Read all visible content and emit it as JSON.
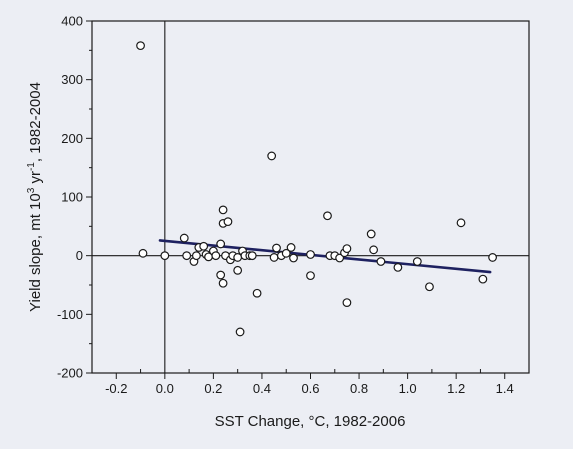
{
  "chart_data": {
    "type": "scatter",
    "xlabel": "SST Change, °C, 1982-2006",
    "ylabel_parts": {
      "pre": "Yield slope, mt 10",
      "sup1": "3",
      "mid": " yr",
      "sup2": "-1",
      "post": ", 1982-2004"
    },
    "xlim": [
      -0.3,
      1.5
    ],
    "ylim": [
      -200,
      400
    ],
    "x_ticks": [
      -0.2,
      0.0,
      0.2,
      0.4,
      0.6,
      0.8,
      1.0,
      1.2,
      1.4
    ],
    "x_tick_labels": [
      "-0.2",
      "0.0",
      "0.2",
      "0.4",
      "0.6",
      "0.8",
      "1.0",
      "1.2",
      "1.4"
    ],
    "y_ticks": [
      -200,
      -100,
      0,
      100,
      200,
      300,
      400
    ],
    "y_tick_labels": [
      "-200",
      "-100",
      "0",
      "100",
      "200",
      "300",
      "400"
    ],
    "zero_lines": true,
    "grid": false,
    "points": [
      {
        "x": -0.1,
        "y": 358
      },
      {
        "x": -0.09,
        "y": 4
      },
      {
        "x": 0.0,
        "y": 0
      },
      {
        "x": 0.08,
        "y": 30
      },
      {
        "x": 0.09,
        "y": 0
      },
      {
        "x": 0.12,
        "y": -10
      },
      {
        "x": 0.13,
        "y": 0
      },
      {
        "x": 0.14,
        "y": 14
      },
      {
        "x": 0.16,
        "y": 16
      },
      {
        "x": 0.17,
        "y": 2
      },
      {
        "x": 0.18,
        "y": -2
      },
      {
        "x": 0.2,
        "y": 8
      },
      {
        "x": 0.21,
        "y": 0
      },
      {
        "x": 0.23,
        "y": 20
      },
      {
        "x": 0.23,
        "y": -33
      },
      {
        "x": 0.24,
        "y": 78
      },
      {
        "x": 0.24,
        "y": 55
      },
      {
        "x": 0.24,
        "y": -47
      },
      {
        "x": 0.25,
        "y": 0
      },
      {
        "x": 0.26,
        "y": 58
      },
      {
        "x": 0.27,
        "y": -7
      },
      {
        "x": 0.28,
        "y": 0
      },
      {
        "x": 0.3,
        "y": -3
      },
      {
        "x": 0.3,
        "y": -25
      },
      {
        "x": 0.31,
        "y": -130
      },
      {
        "x": 0.32,
        "y": 8
      },
      {
        "x": 0.33,
        "y": 0
      },
      {
        "x": 0.35,
        "y": 0
      },
      {
        "x": 0.36,
        "y": 0
      },
      {
        "x": 0.38,
        "y": -64
      },
      {
        "x": 0.44,
        "y": 170
      },
      {
        "x": 0.45,
        "y": -3
      },
      {
        "x": 0.46,
        "y": 13
      },
      {
        "x": 0.48,
        "y": 0
      },
      {
        "x": 0.5,
        "y": 4
      },
      {
        "x": 0.52,
        "y": 14
      },
      {
        "x": 0.53,
        "y": -4
      },
      {
        "x": 0.6,
        "y": 2
      },
      {
        "x": 0.6,
        "y": -34
      },
      {
        "x": 0.67,
        "y": 68
      },
      {
        "x": 0.68,
        "y": 0
      },
      {
        "x": 0.7,
        "y": 0
      },
      {
        "x": 0.72,
        "y": -4
      },
      {
        "x": 0.74,
        "y": 5
      },
      {
        "x": 0.75,
        "y": 12
      },
      {
        "x": 0.75,
        "y": -80
      },
      {
        "x": 0.85,
        "y": 37
      },
      {
        "x": 0.86,
        "y": 10
      },
      {
        "x": 0.89,
        "y": -10
      },
      {
        "x": 0.96,
        "y": -20
      },
      {
        "x": 1.04,
        "y": -10
      },
      {
        "x": 1.09,
        "y": -53
      },
      {
        "x": 1.22,
        "y": 56
      },
      {
        "x": 1.31,
        "y": -40
      },
      {
        "x": 1.35,
        "y": -3
      }
    ],
    "trendline": {
      "x": [
        -0.02,
        1.34
      ],
      "y": [
        26,
        -28
      ]
    }
  }
}
